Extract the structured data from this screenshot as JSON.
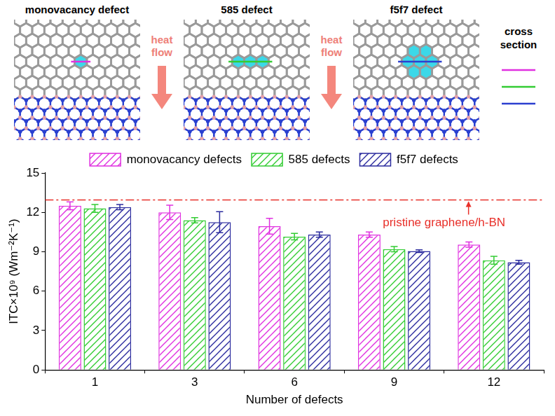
{
  "chart_data": {
    "type": "bar",
    "categories": [
      "1",
      "3",
      "6",
      "9",
      "12"
    ],
    "x_label": "Number of defects",
    "y_label": "ITC×10⁹ (Wm⁻²K⁻¹)",
    "ylim": [
      0,
      15
    ],
    "yticks": [
      0,
      3,
      6,
      9,
      12,
      15
    ],
    "grid": false,
    "legend": "top",
    "series": [
      {
        "name": "monovacancy defects",
        "color": "#e030e0",
        "values": [
          12.5,
          12.0,
          10.95,
          10.3,
          9.55
        ],
        "errors": [
          0.3,
          0.55,
          0.6,
          0.2,
          0.2
        ]
      },
      {
        "name": "585 defects",
        "color": "#33cc33",
        "values": [
          12.3,
          11.4,
          10.15,
          9.2,
          8.35
        ],
        "errors": [
          0.3,
          0.2,
          0.25,
          0.2,
          0.3
        ]
      },
      {
        "name": "f5f7 defects",
        "color": "#2b2b9e",
        "values": [
          12.4,
          11.25,
          10.3,
          9.05,
          8.2
        ],
        "errors": [
          0.2,
          0.8,
          0.2,
          0.1,
          0.15
        ]
      }
    ],
    "reference_lines": [
      {
        "value": 12.95,
        "label": "pristine graphene/h-BN",
        "color": "#e8302a",
        "line_style": "dashdot"
      }
    ]
  },
  "diagram": {
    "panels": [
      {
        "title": "monovacancy defect",
        "cross_section_color": "#e030e0"
      },
      {
        "title": "585 defect",
        "cross_section_color": "#33cc33"
      },
      {
        "title": "f5f7 defect",
        "cross_section_color": "#2b3fd0"
      }
    ],
    "arrows": [
      {
        "label": "heat flow"
      },
      {
        "label": "heat flow"
      }
    ],
    "legend_title": "cross section"
  }
}
